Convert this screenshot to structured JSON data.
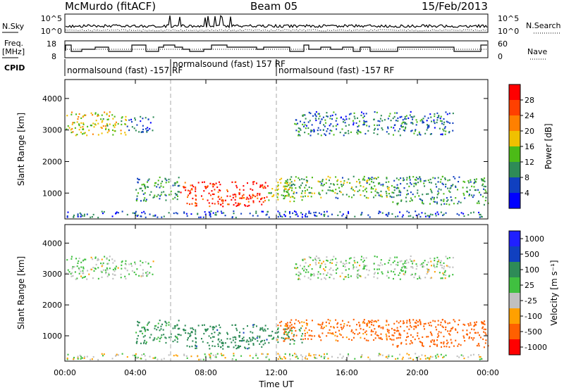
{
  "header": {
    "title": "McMurdo (fitACF)",
    "beam": "Beam 05",
    "date": "15/Feb/2013"
  },
  "noise_panel": {
    "left_label": "N.Sky",
    "right_label": "N.Search",
    "left_ticks": [
      "10^5",
      "10^0"
    ],
    "right_ticks": [
      "10^5",
      "10^0"
    ]
  },
  "freq_panel": {
    "left_label_1": "Freq.",
    "left_label_2": "[MHz]",
    "right_label": "Nave",
    "left_ticks": [
      "18",
      "8"
    ],
    "right_ticks": [
      "60",
      "0"
    ]
  },
  "cpid": {
    "label": "CPID",
    "segments": [
      {
        "start_h": 0.0,
        "text": "normalsound (fast) -157 RF"
      },
      {
        "start_h": 6.0,
        "text": "normalsound (fast) 157 RF"
      },
      {
        "start_h": 12.0,
        "text": "normalsound (fast) -157 RF"
      }
    ]
  },
  "axes": {
    "ylabel": "Slant Range [km]",
    "xlabel": "Time UT",
    "y_ticks": [
      "1000",
      "2000",
      "3000",
      "4000"
    ],
    "x_ticks": [
      "00:00",
      "04:00",
      "08:00",
      "12:00",
      "16:00",
      "20:00",
      "00:00"
    ]
  },
  "colors": {
    "power": [
      "#0000ff",
      "#1040c0",
      "#2e8b57",
      "#4cbb17",
      "#f0c000",
      "#ff8000",
      "#ff4000",
      "#ff0000"
    ],
    "velocity": [
      "#ff0000",
      "#ff6000",
      "#ffa000",
      "#c0c0c0",
      "#40c040",
      "#2e8b57",
      "#1040c0",
      "#2020ff"
    ]
  },
  "power_scale": {
    "label": "Power [dB]",
    "ticks": [
      "4",
      "8",
      "12",
      "16",
      "20",
      "24",
      "28"
    ]
  },
  "velocity_scale": {
    "label": "Velocity [m s⁻¹]",
    "ticks": [
      "1000",
      "500",
      "100",
      "25",
      "-25",
      "-100",
      "-500",
      "-1000"
    ]
  },
  "chart_data": {
    "type": "heatmap",
    "title": "McMurdo (fitACF)",
    "xlabel": "Time UT",
    "ylabel": "Slant Range [km]",
    "xlim": [
      0,
      24
    ],
    "ylim": [
      180,
      4600
    ],
    "cpid_boundaries_h": [
      6.0,
      12.0
    ],
    "power_range_db": [
      0,
      30
    ],
    "velocity_range": [
      -1000,
      1000
    ],
    "echo_regions": [
      {
        "t0": 0.0,
        "t1": 3.5,
        "r0": 2800,
        "r1": 3550,
        "power": 16,
        "velocity": 25
      },
      {
        "t0": 3.5,
        "t1": 5.0,
        "r0": 2900,
        "r1": 3400,
        "power": 6,
        "velocity": 25
      },
      {
        "t0": 4.0,
        "t1": 6.5,
        "r0": 700,
        "r1": 1500,
        "power": 10,
        "velocity": 150
      },
      {
        "t0": 6.5,
        "t1": 11.5,
        "r0": 550,
        "r1": 1350,
        "power": 26,
        "velocity": 350
      },
      {
        "t0": 11.5,
        "t1": 13.5,
        "r0": 700,
        "r1": 1250,
        "power": 14,
        "velocity": 150
      },
      {
        "t0": 12.0,
        "t1": 18.5,
        "r0": 800,
        "r1": 1500,
        "power": 12,
        "velocity": -150
      },
      {
        "t0": 18.5,
        "t1": 24.0,
        "r0": 600,
        "r1": 1500,
        "power": 10,
        "velocity": -300
      },
      {
        "t0": 13.0,
        "t1": 22.0,
        "r0": 2800,
        "r1": 3550,
        "power": 8,
        "velocity": 25
      },
      {
        "t0": 0.0,
        "t1": 24.0,
        "r0": 200,
        "r1": 400,
        "power": 6,
        "velocity": 0
      }
    ]
  }
}
